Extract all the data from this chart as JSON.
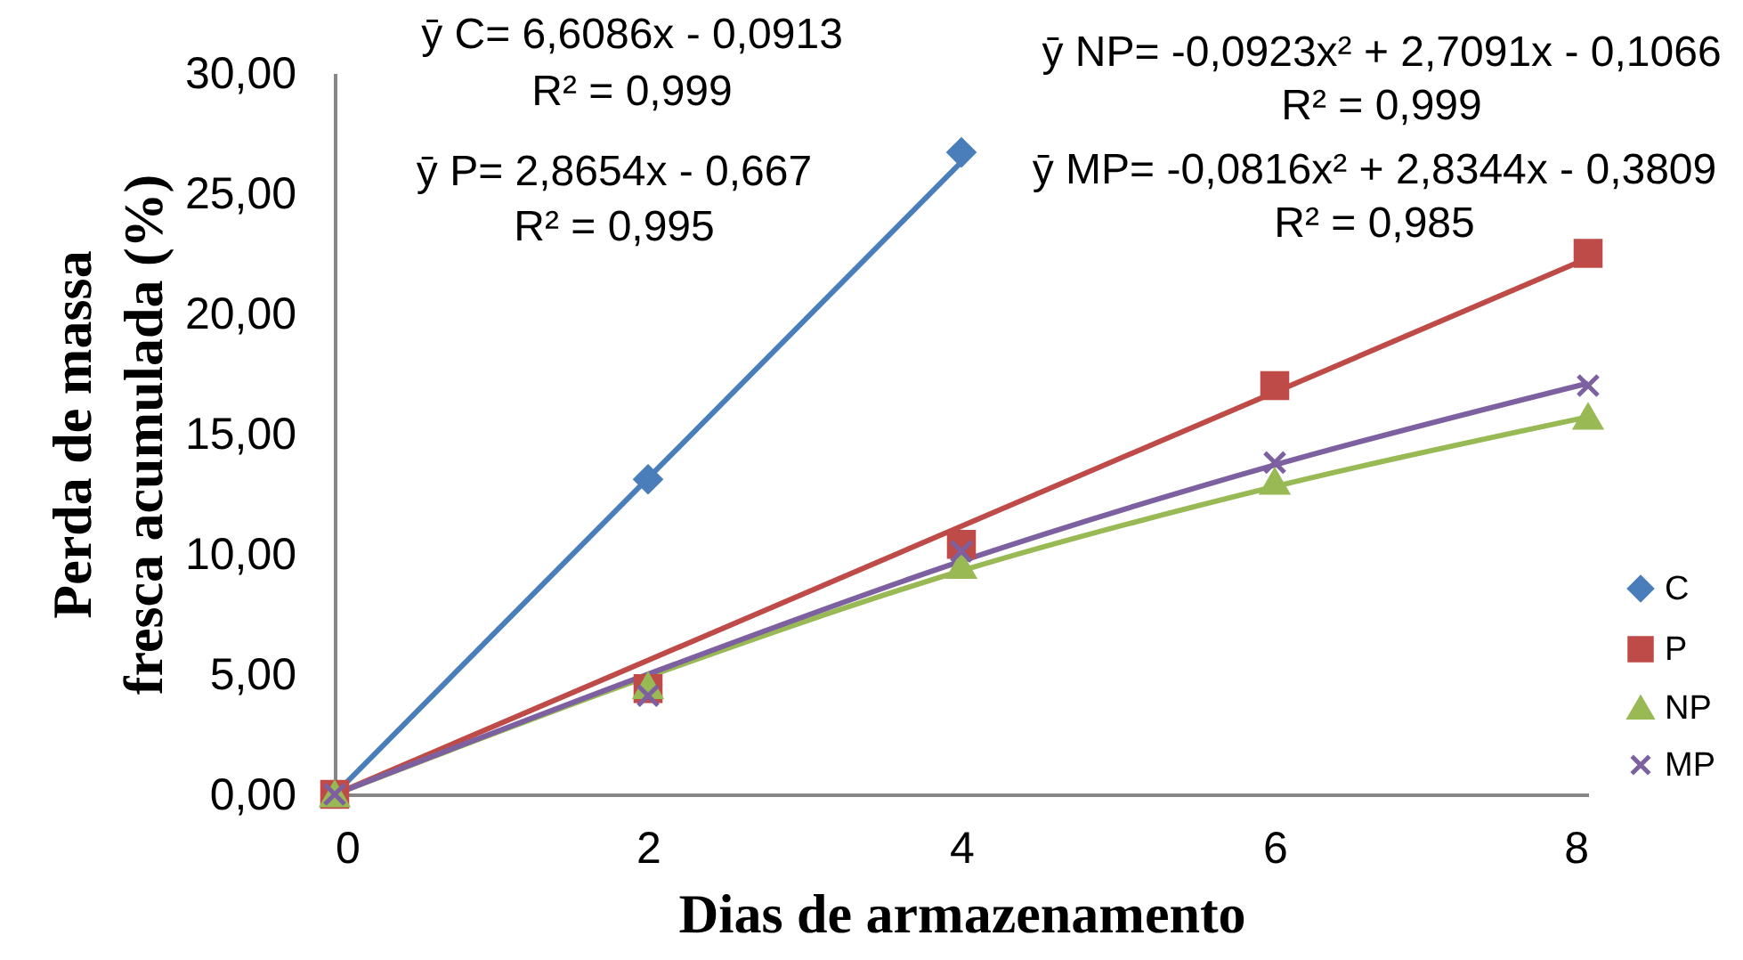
{
  "chart_data": {
    "type": "scatter",
    "xlabel": "Dias de armazenamento",
    "ylabel": "Perda de massa fresca acumulada (%)",
    "xlim": [
      0,
      8
    ],
    "xticks": [
      0,
      2,
      4,
      6,
      8
    ],
    "ylim": [
      0,
      30
    ],
    "yticks": [
      {
        "value": 0,
        "label": "0,00"
      },
      {
        "value": 5,
        "label": "5,00"
      },
      {
        "value": 10,
        "label": "10,00"
      },
      {
        "value": 15,
        "label": "15,00"
      },
      {
        "value": 20,
        "label": "20,00"
      },
      {
        "value": 25,
        "label": "25,00"
      },
      {
        "value": 30,
        "label": "30,00"
      }
    ],
    "grid": false,
    "legend": "right",
    "series": [
      {
        "name": "C",
        "marker": "diamond",
        "color": "#4a7ebb",
        "x": [
          2,
          4
        ],
        "values": [
          13.1,
          26.7
        ]
      },
      {
        "name": "P",
        "marker": "square",
        "color": "#be4b48",
        "x": [
          0,
          2,
          4,
          6,
          8
        ],
        "values": [
          0,
          4.4,
          10.4,
          17.0,
          22.5
        ]
      },
      {
        "name": "NP",
        "marker": "triangle",
        "color": "#98b954",
        "x": [
          0,
          2,
          4,
          6,
          8
        ],
        "values": [
          0,
          4.5,
          9.5,
          13.0,
          15.7
        ]
      },
      {
        "name": "MP",
        "marker": "cross",
        "color": "#7d60a0",
        "x": [
          0,
          2,
          4,
          6,
          8
        ],
        "values": [
          0,
          4.1,
          10.1,
          13.8,
          17.0
        ]
      },
      {
        "type": "line",
        "color": "#4a7ebb",
        "x": [
          0,
          4
        ],
        "values": [
          0,
          26.3
        ]
      },
      {
        "type": "line",
        "color": "#be4b48",
        "x": [
          0,
          8
        ],
        "values": [
          0,
          22.3
        ]
      },
      {
        "type": "line",
        "color": "#98b954",
        "x": [
          0,
          2,
          4,
          6,
          8
        ],
        "values": [
          0,
          4.9,
          9.3,
          12.8,
          15.7
        ]
      },
      {
        "type": "line",
        "color": "#7d60a0",
        "x": [
          0,
          2,
          4,
          6,
          8
        ],
        "values": [
          0,
          5.0,
          9.7,
          13.7,
          17.1
        ]
      }
    ],
    "annotations": [
      "ȳ C= 6,6086x - 0,0913",
      "R² = 0,999",
      "ȳ P= 2,8654x - 0,667",
      "R² = 0,995",
      "ȳ NP= -0,0923x² + 2,7091x - 0,1066",
      "R² = 0,999",
      "ȳ MP= -0,0816x² + 2,8344x - 0,3809",
      "R² = 0,985"
    ]
  }
}
